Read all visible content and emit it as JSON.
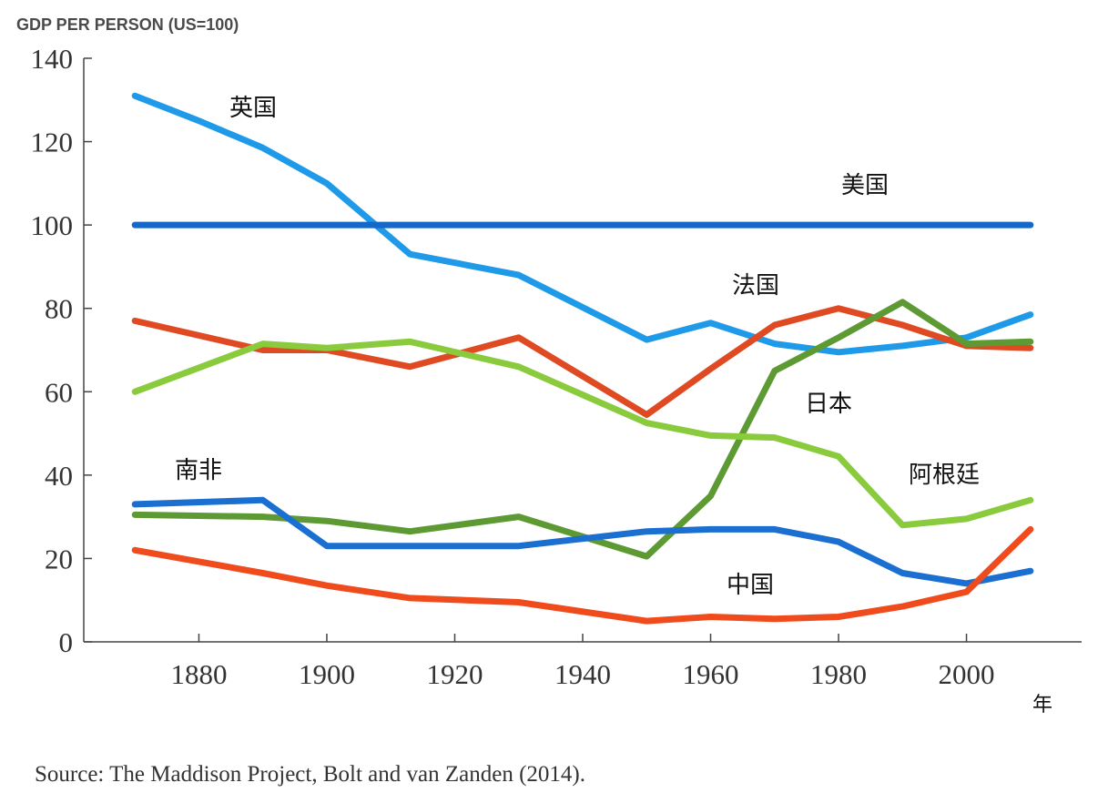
{
  "chart_data": {
    "type": "line",
    "ylabel": "GDP PER PERSON (US=100)",
    "xlabel": "年",
    "ylim": [
      0,
      140
    ],
    "xlim": [
      1862,
      2018
    ],
    "xticks": [
      1880,
      1900,
      1920,
      1940,
      1960,
      1980,
      2000
    ],
    "yticks": [
      0,
      20,
      40,
      60,
      80,
      100,
      120,
      140
    ],
    "source": "Source: The Maddison Project, Bolt and van Zanden (2014).",
    "series": [
      {
        "name": "英国",
        "color": "#1f9ae8",
        "x": [
          1870,
          1880,
          1890,
          1900,
          1913,
          1930,
          1950,
          1960,
          1970,
          1980,
          1990,
          2000,
          2010
        ],
        "y": [
          131,
          125,
          118.5,
          110,
          93,
          88,
          72.5,
          76.5,
          71.5,
          69.5,
          71,
          73,
          78.5
        ]
      },
      {
        "name": "美国",
        "color": "#1468c8",
        "x": [
          1870,
          2010
        ],
        "y": [
          100,
          100
        ]
      },
      {
        "name": "法国",
        "color": "#df4a22",
        "x": [
          1870,
          1890,
          1900,
          1913,
          1930,
          1950,
          1960,
          1970,
          1980,
          1990,
          2000,
          2010
        ],
        "y": [
          77,
          70,
          70,
          66,
          73,
          54.5,
          65.5,
          76,
          80,
          76,
          71,
          70.5
        ]
      },
      {
        "name": "日本",
        "color": "#5e9a34",
        "x": [
          1870,
          1890,
          1900,
          1913,
          1930,
          1950,
          1960,
          1970,
          1980,
          1990,
          2000,
          2010
        ],
        "y": [
          30.5,
          30,
          29,
          26.5,
          30,
          20.5,
          35,
          65,
          73,
          81.5,
          71.5,
          72
        ]
      },
      {
        "name": "阿根廷",
        "color": "#8acb3e",
        "x": [
          1870,
          1890,
          1900,
          1913,
          1930,
          1950,
          1960,
          1970,
          1980,
          1990,
          2000,
          2010
        ],
        "y": [
          60,
          71.5,
          70.5,
          72,
          66,
          52.5,
          49.5,
          49,
          44.5,
          28,
          29.5,
          34
        ]
      },
      {
        "name": "南非",
        "color": "#1b6fd0",
        "x": [
          1870,
          1890,
          1900,
          1913,
          1930,
          1950,
          1960,
          1970,
          1980,
          1990,
          2000,
          2010
        ],
        "y": [
          33,
          34,
          23,
          23,
          23,
          26.5,
          27,
          27,
          24,
          16.5,
          14,
          17
        ]
      },
      {
        "name": "中国",
        "color": "#ef4b1c",
        "x": [
          1870,
          1890,
          1900,
          1913,
          1930,
          1950,
          1960,
          1970,
          1980,
          1990,
          2000,
          2010
        ],
        "y": [
          22,
          16.5,
          13.5,
          10.5,
          9.5,
          5,
          6,
          5.5,
          6,
          8.5,
          12,
          27
        ]
      }
    ]
  }
}
